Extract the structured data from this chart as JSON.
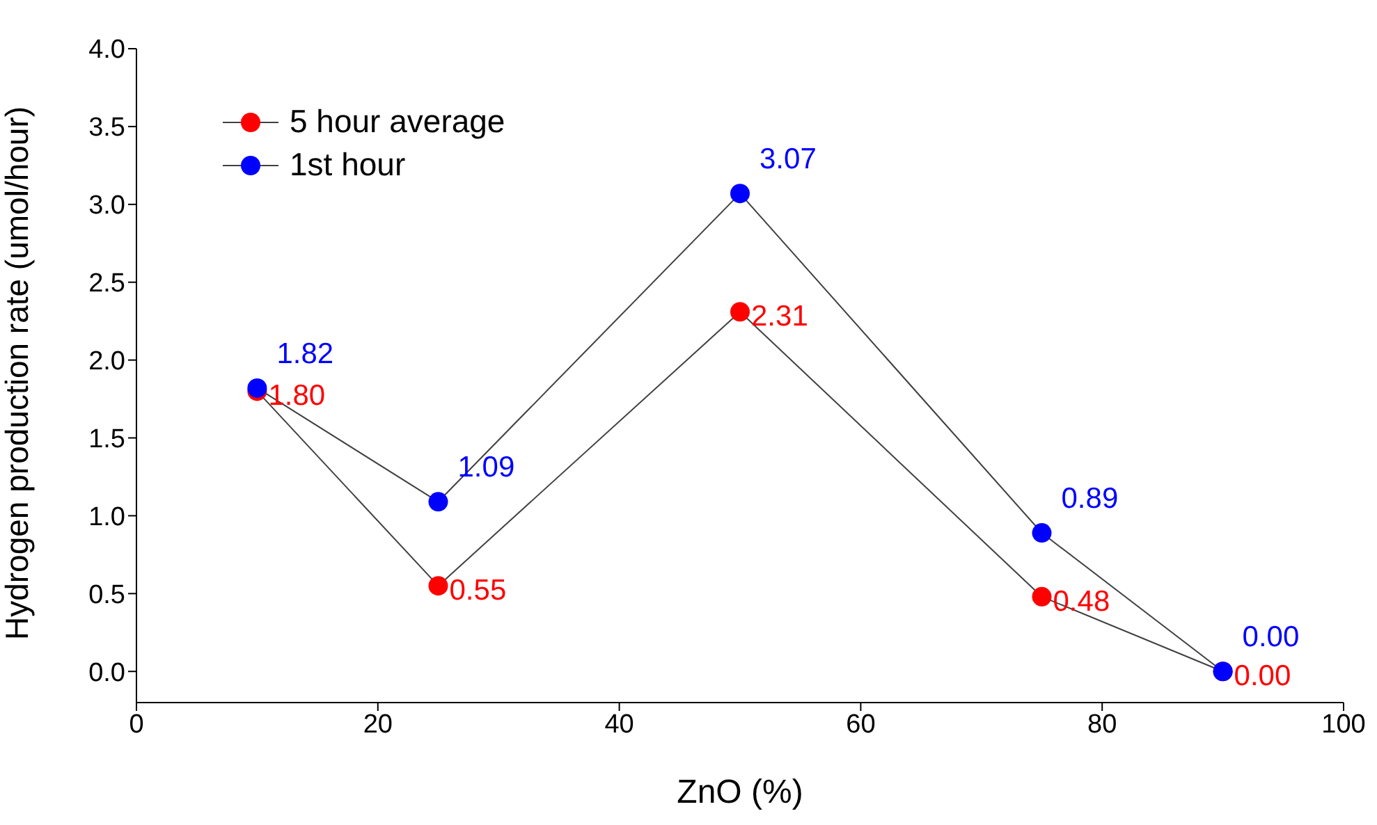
{
  "chart_data": {
    "type": "line",
    "xlabel": "ZnO (%)",
    "ylabel": "Hydrogen production rate (umol/hour)",
    "x": [
      10,
      25,
      50,
      75,
      90
    ],
    "series": [
      {
        "name": "5 hour average",
        "color": "#ff0000",
        "values": [
          1.8,
          0.55,
          2.31,
          0.48,
          0.0
        ],
        "value_labels": [
          "1.80",
          "0.55",
          "2.31",
          "0.48",
          "0.00"
        ]
      },
      {
        "name": "1st hour",
        "color": "#0000ff",
        "values": [
          1.82,
          1.09,
          3.07,
          0.89,
          0.0
        ],
        "value_labels": [
          "1.82",
          "1.09",
          "3.07",
          "0.89",
          "0.00"
        ]
      }
    ],
    "xlim": [
      0,
      100
    ],
    "xticks": [
      0,
      20,
      40,
      60,
      80,
      100
    ],
    "ylim": [
      -0.2,
      4.0
    ],
    "yticks": [
      {
        "value": 0,
        "label": "0.0"
      },
      {
        "value": 0.5,
        "label": "0.5"
      },
      {
        "value": 1,
        "label": "1.0"
      },
      {
        "value": 1.5,
        "label": "1.5"
      },
      {
        "value": 2,
        "label": "2.0"
      },
      {
        "value": 2.5,
        "label": "2.5"
      },
      {
        "value": 3,
        "label": "3.0"
      },
      {
        "value": 3.5,
        "label": "3.5"
      },
      {
        "value": 4,
        "label": "4.0"
      }
    ],
    "grid": false,
    "legend": "top left",
    "marker": "circle",
    "line_style": "solid"
  }
}
